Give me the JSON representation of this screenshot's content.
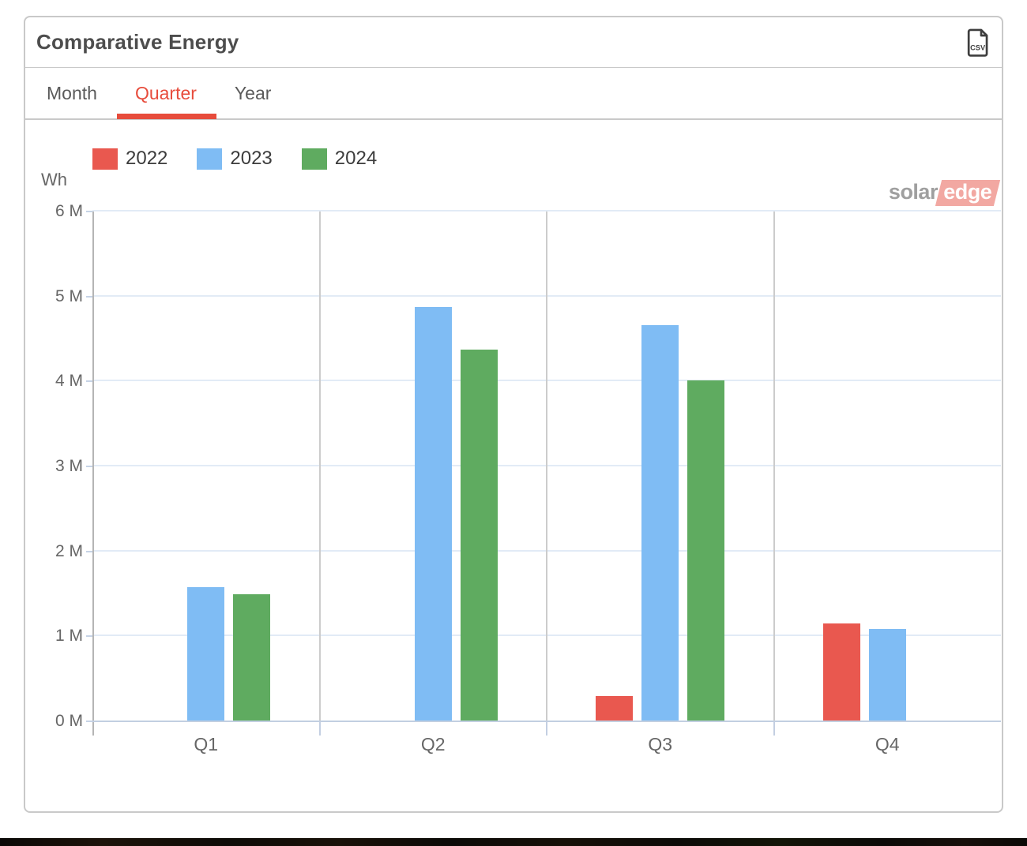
{
  "header": {
    "title": "Comparative Energy",
    "csv_icon_label": "CSV"
  },
  "tabs": [
    {
      "label": "Month",
      "active": false
    },
    {
      "label": "Quarter",
      "active": true
    },
    {
      "label": "Year",
      "active": false
    }
  ],
  "active_tab_color": "#e74c3c",
  "logo": {
    "solar": "solar",
    "edge": "edge"
  },
  "chart_data": {
    "type": "bar",
    "title": "Comparative Energy",
    "unit": "Wh",
    "ylabel": "Wh",
    "xlabel": "",
    "categories": [
      "Q1",
      "Q2",
      "Q3",
      "Q4"
    ],
    "series": [
      {
        "name": "2022",
        "color": "#e9584f",
        "values_mwh": [
          null,
          null,
          0.29,
          1.14
        ]
      },
      {
        "name": "2023",
        "color": "#7fbcf4",
        "values_mwh": [
          1.57,
          4.87,
          4.65,
          1.08
        ]
      },
      {
        "name": "2024",
        "color": "#5fab60",
        "values_mwh": [
          1.49,
          4.37,
          4.0,
          null
        ]
      }
    ],
    "ylim": [
      0,
      6
    ],
    "ytick_labels": [
      "0 M",
      "1 M",
      "2 M",
      "3 M",
      "4 M",
      "5 M",
      "6 M"
    ],
    "grid": true,
    "legend_position": "top-left"
  }
}
